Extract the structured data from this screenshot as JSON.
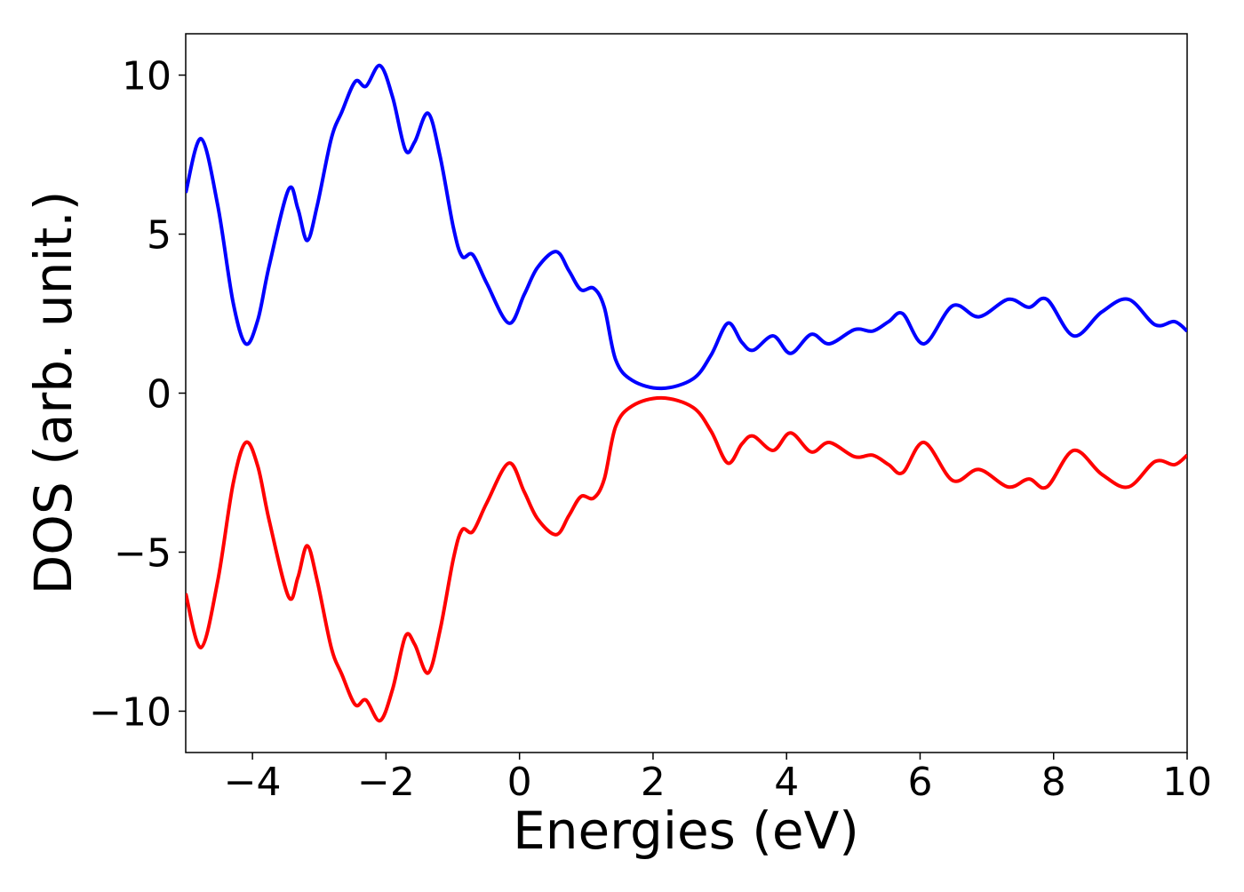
{
  "chart_data": {
    "type": "line",
    "xlabel": "Energies (eV)",
    "ylabel": "DOS (arb. unit.)",
    "x": [
      -5,
      -4.77,
      -4.52,
      -4.29,
      -4.1,
      -3.92,
      -3.75,
      -3.46,
      -3.32,
      -3.18,
      -3.03,
      -2.82,
      -2.66,
      -2.46,
      -2.3,
      -2.09,
      -1.9,
      -1.71,
      -1.57,
      -1.37,
      -1.19,
      -0.99,
      -0.86,
      -0.7,
      -0.49,
      -0.16,
      0.07,
      0.27,
      0.55,
      0.74,
      0.92,
      1.11,
      1.27,
      1.44,
      1.69,
      2.13,
      2.6,
      2.87,
      3.12,
      3.33,
      3.5,
      3.8,
      4.06,
      4.37,
      4.64,
      5.02,
      5.29,
      5.53,
      5.74,
      6.06,
      6.49,
      6.88,
      7.32,
      7.63,
      7.9,
      8.3,
      8.72,
      9.12,
      9.52,
      9.81,
      10
    ],
    "series": [
      {
        "color": "#0000ff",
        "values": [
          6.3,
          8.0,
          5.9,
          2.85,
          1.55,
          2.3,
          4.0,
          6.4,
          5.8,
          4.8,
          5.9,
          8.0,
          8.85,
          9.8,
          9.65,
          10.3,
          9.3,
          7.65,
          7.9,
          8.8,
          7.45,
          5.2,
          4.3,
          4.35,
          3.45,
          2.2,
          3.1,
          3.95,
          4.45,
          3.85,
          3.25,
          3.3,
          2.7,
          1.05,
          0.4,
          0.15,
          0.45,
          1.2,
          2.2,
          1.6,
          1.35,
          1.8,
          1.25,
          1.85,
          1.55,
          2.0,
          1.95,
          2.25,
          2.5,
          1.55,
          2.75,
          2.4,
          2.95,
          2.7,
          2.95,
          1.8,
          2.55,
          2.95,
          2.15,
          2.25,
          1.95
        ]
      },
      {
        "color": "#ff0000",
        "values": [
          -6.3,
          -8.0,
          -5.9,
          -2.85,
          -1.55,
          -2.3,
          -4.0,
          -6.4,
          -5.8,
          -4.8,
          -5.9,
          -8.0,
          -8.85,
          -9.8,
          -9.65,
          -10.3,
          -9.3,
          -7.65,
          -7.9,
          -8.8,
          -7.45,
          -5.2,
          -4.3,
          -4.35,
          -3.45,
          -2.2,
          -3.1,
          -3.95,
          -4.45,
          -3.85,
          -3.25,
          -3.3,
          -2.7,
          -1.05,
          -0.4,
          -0.15,
          -0.45,
          -1.2,
          -2.2,
          -1.6,
          -1.35,
          -1.8,
          -1.25,
          -1.85,
          -1.55,
          -2.0,
          -1.95,
          -2.25,
          -2.5,
          -1.55,
          -2.75,
          -2.4,
          -2.95,
          -2.7,
          -2.95,
          -1.8,
          -2.55,
          -2.95,
          -2.15,
          -2.25,
          -1.95
        ]
      }
    ],
    "xlim": [
      -5,
      10
    ],
    "xticks": [
      {
        "value": -4,
        "label": "−4"
      },
      {
        "value": -2,
        "label": "−2"
      },
      0,
      2,
      4,
      6,
      8,
      10
    ],
    "ylim": [
      -11.3,
      11.3
    ],
    "yticks": [
      {
        "value": -10,
        "label": "−10"
      },
      {
        "value": -5,
        "label": "−5"
      },
      0,
      5,
      10
    ],
    "grid": false
  }
}
